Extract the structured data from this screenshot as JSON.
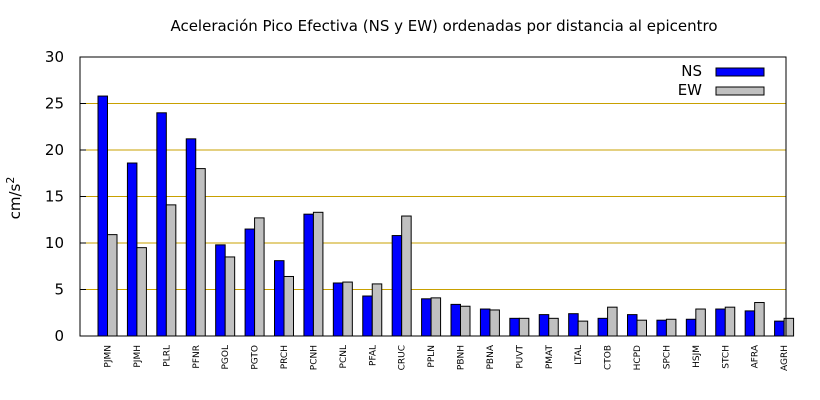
{
  "chart_data": {
    "type": "bar",
    "title": "Aceleración Pico Efectiva (NS y EW) ordenadas por distancia al epicentro",
    "ylabel": "cm/s",
    "ylabel_sup": "2",
    "xlabel": "",
    "ylim": [
      0,
      30
    ],
    "yticks": [
      0,
      5,
      10,
      15,
      20,
      25,
      30
    ],
    "grid": "horizontal",
    "grid_color": "#c8a000",
    "legend_position": "top-right",
    "categories": [
      "PJMN",
      "PJMH",
      "PLRL",
      "PFNR",
      "PGOL",
      "PGTO",
      "PRCH",
      "PCNH",
      "PCNL",
      "PFAL",
      "CRUC",
      "PPLN",
      "PBNH",
      "PBNA",
      "PUVT",
      "PMAT",
      "LTAL",
      "CTOB",
      "HCPD",
      "SPCH",
      "HSJM",
      "STCH",
      "AFRA",
      "AGRH"
    ],
    "series": [
      {
        "name": "NS",
        "color": "#0000ff",
        "values": [
          25.8,
          18.6,
          24.0,
          21.2,
          9.8,
          11.5,
          8.1,
          13.1,
          5.7,
          4.3,
          10.8,
          4.0,
          3.4,
          2.9,
          1.9,
          2.3,
          2.4,
          1.9,
          2.3,
          1.7,
          1.8,
          2.9,
          2.7,
          1.6
        ]
      },
      {
        "name": "EW",
        "color": "#c0c0c0",
        "values": [
          10.9,
          9.5,
          14.1,
          18.0,
          8.5,
          12.7,
          6.4,
          13.3,
          5.8,
          5.6,
          12.9,
          4.1,
          3.2,
          2.8,
          1.9,
          1.9,
          1.6,
          3.1,
          1.7,
          1.8,
          2.9,
          3.1,
          3.6,
          1.9
        ]
      }
    ]
  }
}
